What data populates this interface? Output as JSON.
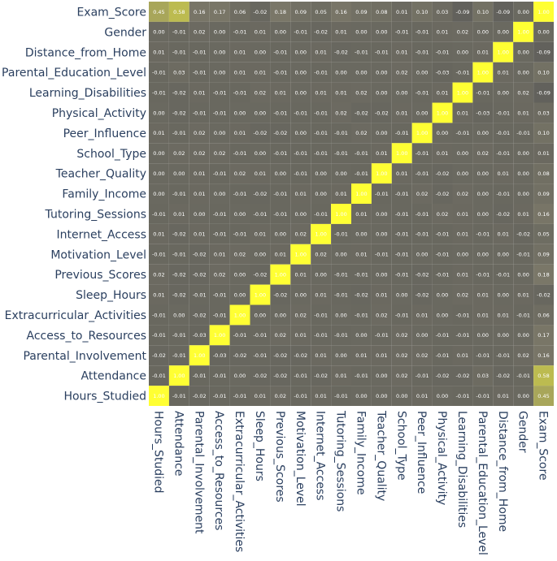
{
  "chart_data": {
    "type": "heatmap",
    "title": "",
    "xlabel": "",
    "ylabel": "",
    "colorscale": {
      "low": "#555555",
      "high": "#ffff33",
      "text_color": "#ffffff"
    },
    "value_format": "2dp",
    "x_categories": [
      "Hours_Studied",
      "Attendance",
      "Parental_Involvement",
      "Access_to_Resources",
      "Extracurricular_Activities",
      "Sleep_Hours",
      "Previous_Scores",
      "Motivation_Level",
      "Internet_Access",
      "Tutoring_Sessions",
      "Family_Income",
      "Teacher_Quality",
      "School_Type",
      "Peer_Influence",
      "Physical_Activity",
      "Learning_Disabilities",
      "Parental_Education_Level",
      "Distance_from_Home",
      "Gender",
      "Exam_Score"
    ],
    "y_categories": [
      "Exam_Score",
      "Gender",
      "Distance_from_Home",
      "Parental_Education_Level",
      "Learning_Disabilities",
      "Physical_Activity",
      "Peer_Influence",
      "School_Type",
      "Teacher_Quality",
      "Family_Income",
      "Tutoring_Sessions",
      "Internet_Access",
      "Motivation_Level",
      "Previous_Scores",
      "Sleep_Hours",
      "Extracurricular_Activities",
      "Access_to_Resources",
      "Parental_Involvement",
      "Attendance",
      "Hours_Studied"
    ],
    "z": [
      [
        0.45,
        0.58,
        0.16,
        0.17,
        0.06,
        -0.02,
        0.18,
        0.09,
        0.05,
        0.16,
        0.09,
        0.08,
        0.01,
        0.1,
        0.03,
        -0.09,
        0.1,
        -0.09,
        0.0,
        1.0
      ],
      [
        0.0,
        -0.01,
        0.02,
        0.0,
        -0.01,
        0.01,
        0.0,
        -0.01,
        -0.02,
        0.01,
        0.0,
        0.0,
        -0.01,
        -0.01,
        0.01,
        0.02,
        0.0,
        0.0,
        1.0,
        0.0
      ],
      [
        0.01,
        -0.01,
        -0.01,
        0.0,
        0.01,
        0.0,
        -0.01,
        0.0,
        0.01,
        -0.02,
        -0.01,
        -0.01,
        0.01,
        -0.01,
        -0.01,
        0.0,
        0.01,
        1.0,
        0.0,
        -0.09
      ],
      [
        -0.01,
        0.03,
        -0.01,
        0.0,
        0.01,
        0.01,
        -0.01,
        0.0,
        -0.01,
        0.0,
        0.0,
        0.0,
        0.02,
        0.0,
        -0.03,
        -0.01,
        1.0,
        0.01,
        0.0,
        0.1
      ],
      [
        -0.01,
        -0.02,
        0.01,
        -0.01,
        -0.01,
        0.02,
        0.01,
        0.0,
        0.01,
        0.01,
        0.02,
        0.0,
        0.0,
        -0.01,
        0.01,
        1.0,
        -0.01,
        0.0,
        0.02,
        -0.09
      ],
      [
        0.0,
        -0.02,
        -0.01,
        -0.01,
        0.0,
        0.0,
        -0.01,
        -0.01,
        -0.01,
        0.02,
        -0.02,
        -0.02,
        0.01,
        0.0,
        1.0,
        0.01,
        -0.03,
        -0.01,
        0.01,
        0.03
      ],
      [
        0.01,
        -0.01,
        0.02,
        0.0,
        0.01,
        -0.02,
        -0.02,
        0.0,
        -0.01,
        -0.01,
        0.02,
        0.0,
        -0.01,
        1.0,
        0.0,
        -0.01,
        0.0,
        -0.01,
        -0.01,
        0.1
      ],
      [
        0.0,
        0.02,
        0.02,
        0.02,
        -0.01,
        0.0,
        -0.01,
        -0.01,
        -0.01,
        -0.01,
        -0.01,
        0.01,
        1.0,
        -0.01,
        0.01,
        0.0,
        0.02,
        -0.01,
        0.0,
        0.01
      ],
      [
        0.0,
        0.0,
        0.01,
        -0.01,
        0.02,
        0.01,
        0.0,
        -0.01,
        0.0,
        0.0,
        -0.01,
        1.0,
        0.01,
        -0.01,
        -0.02,
        0.0,
        0.0,
        0.01,
        0.0,
        0.08
      ],
      [
        0.0,
        -0.01,
        0.01,
        0.0,
        -0.01,
        -0.02,
        -0.01,
        0.01,
        0.0,
        0.01,
        1.0,
        -0.01,
        -0.01,
        0.02,
        -0.02,
        0.02,
        0.0,
        -0.01,
        0.0,
        0.09
      ],
      [
        -0.01,
        0.01,
        0.0,
        -0.01,
        0.0,
        -0.01,
        -0.01,
        0.0,
        -0.01,
        1.0,
        0.01,
        0.0,
        -0.01,
        -0.01,
        0.02,
        0.01,
        0.0,
        -0.02,
        0.01,
        0.16
      ],
      [
        0.01,
        -0.02,
        0.01,
        -0.01,
        -0.01,
        0.01,
        0.0,
        0.02,
        1.0,
        -0.01,
        0.0,
        0.0,
        -0.01,
        -0.01,
        -0.01,
        0.01,
        -0.01,
        0.01,
        -0.02,
        0.05
      ],
      [
        -0.01,
        -0.01,
        -0.02,
        0.01,
        0.02,
        0.0,
        0.01,
        1.0,
        0.02,
        0.0,
        0.01,
        -0.01,
        -0.01,
        0.0,
        -0.01,
        0.0,
        0.0,
        0.0,
        -0.01,
        0.09
      ],
      [
        0.02,
        -0.02,
        -0.02,
        0.02,
        0.0,
        -0.02,
        1.0,
        0.01,
        0.0,
        -0.01,
        -0.01,
        0.0,
        -0.01,
        -0.02,
        -0.01,
        0.01,
        -0.01,
        -0.01,
        0.0,
        0.18
      ],
      [
        0.01,
        -0.02,
        -0.01,
        -0.01,
        0.0,
        1.0,
        -0.02,
        0.0,
        0.01,
        -0.01,
        -0.02,
        0.01,
        0.0,
        -0.02,
        0.0,
        0.02,
        0.01,
        0.0,
        0.01,
        -0.02
      ],
      [
        -0.01,
        0.0,
        -0.02,
        -0.01,
        1.0,
        0.0,
        0.0,
        0.02,
        -0.01,
        0.0,
        -0.01,
        0.02,
        -0.01,
        0.01,
        0.0,
        -0.01,
        0.01,
        0.01,
        -0.01,
        0.06
      ],
      [
        -0.01,
        -0.01,
        -0.03,
        1.0,
        -0.01,
        -0.01,
        0.02,
        0.01,
        -0.01,
        -0.01,
        0.0,
        -0.01,
        0.02,
        0.0,
        -0.01,
        -0.01,
        0.0,
        0.0,
        0.0,
        0.17
      ],
      [
        -0.02,
        -0.01,
        1.0,
        -0.03,
        -0.02,
        -0.01,
        -0.02,
        -0.02,
        0.01,
        0.0,
        0.01,
        0.01,
        0.02,
        0.02,
        -0.01,
        0.01,
        -0.01,
        -0.01,
        0.02,
        0.16
      ],
      [
        -0.01,
        1.0,
        -0.01,
        -0.01,
        0.0,
        -0.02,
        -0.02,
        -0.01,
        -0.02,
        0.01,
        -0.01,
        0.0,
        0.02,
        -0.01,
        -0.02,
        -0.02,
        0.03,
        -0.02,
        -0.01,
        0.58
      ],
      [
        1.0,
        -0.01,
        -0.02,
        -0.01,
        -0.01,
        0.01,
        0.02,
        -0.01,
        0.01,
        -0.01,
        0.0,
        0.0,
        0.0,
        0.01,
        0.0,
        -0.01,
        -0.01,
        0.01,
        0.0,
        0.45
      ]
    ]
  }
}
